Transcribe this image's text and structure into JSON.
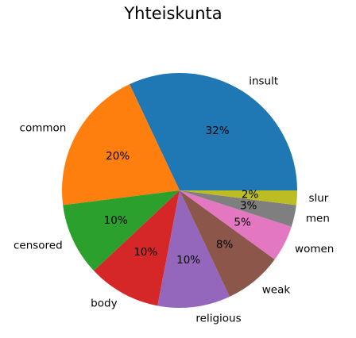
{
  "chart_data": {
    "type": "pie",
    "title": "Yhteiskunta",
    "start_angle_deg": 0,
    "direction": "counterclockwise",
    "slices": [
      {
        "label": "insult",
        "value": 32,
        "pct_label": "32%",
        "color": "#1f77b4"
      },
      {
        "label": "common",
        "value": 20,
        "pct_label": "20%",
        "color": "#ff7f0e"
      },
      {
        "label": "censored",
        "value": 10,
        "pct_label": "10%",
        "color": "#2ca02c"
      },
      {
        "label": "body",
        "value": 10,
        "pct_label": "10%",
        "color": "#d62728"
      },
      {
        "label": "religious",
        "value": 10,
        "pct_label": "10%",
        "color": "#9467bd"
      },
      {
        "label": "weak",
        "value": 8,
        "pct_label": "8%",
        "color": "#8c564b"
      },
      {
        "label": "women",
        "value": 5,
        "pct_label": "5%",
        "color": "#e377c2"
      },
      {
        "label": "men",
        "value": 3,
        "pct_label": "3%",
        "color": "#7f7f7f"
      },
      {
        "label": "slur",
        "value": 2,
        "pct_label": "2%",
        "color": "#bcbd22"
      }
    ]
  }
}
